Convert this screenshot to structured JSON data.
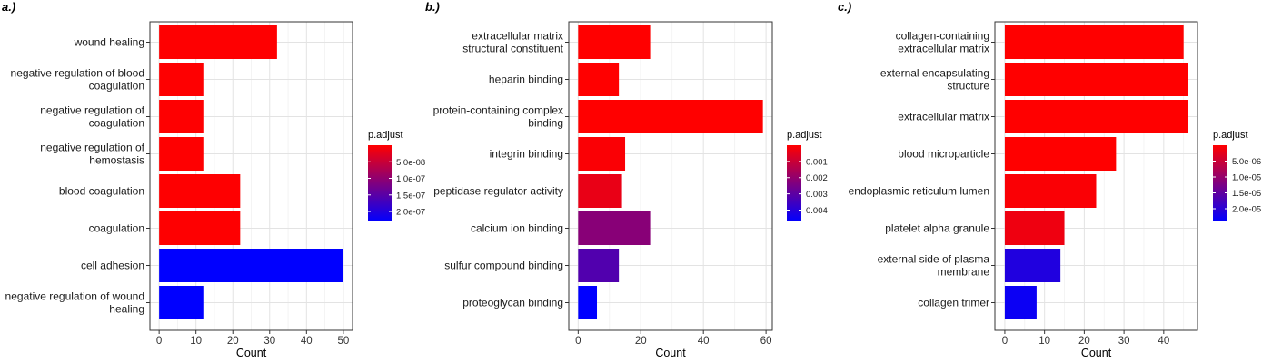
{
  "chart_data": [
    {
      "type": "bar",
      "orientation": "horizontal",
      "panel_label": "a.)",
      "categories": [
        "wound healing",
        "negative regulation of blood\ncoagulation",
        "negative regulation of\ncoagulation",
        "negative regulation of\nhemostasis",
        "blood coagulation",
        "coagulation",
        "cell adhesion",
        "negative regulation of wound\nhealing"
      ],
      "values": [
        32,
        12,
        12,
        12,
        22,
        22,
        50,
        12
      ],
      "p_adjust": [
        5e-10,
        1e-09,
        1e-09,
        1e-09,
        1e-09,
        1e-09,
        2.3e-07,
        2.3e-07
      ],
      "xlabel": "Count",
      "xlim": [
        -2.5,
        52.5
      ],
      "xticks": [
        0,
        10,
        20,
        30,
        40,
        50
      ],
      "grid": true,
      "legend": {
        "title": "p.adjust",
        "placement": "right",
        "min": 0,
        "max": 2.3e-07,
        "ticks": [
          5e-08,
          1e-07,
          1.5e-07,
          2e-07
        ],
        "tick_labels": [
          "5.0e-08",
          "1.0e-07",
          "1.5e-07",
          "2.0e-07"
        ]
      }
    },
    {
      "type": "bar",
      "orientation": "horizontal",
      "panel_label": "b.)",
      "categories": [
        "extracellular matrix\nstructural constituent",
        "heparin binding",
        "protein-containing complex\nbinding",
        "integrin binding",
        "peptidase regulator activity",
        "calcium ion binding",
        "sulfur compound binding",
        "proteoglycan binding"
      ],
      "values": [
        23,
        13,
        59,
        15,
        14,
        23,
        13,
        6
      ],
      "p_adjust": [
        5e-06,
        5e-06,
        5e-06,
        0.0001,
        0.0004,
        0.0022,
        0.0032,
        0.0047
      ],
      "xlabel": "Count",
      "xlim": [
        -3,
        62
      ],
      "xticks": [
        0,
        20,
        40,
        60
      ],
      "grid": true,
      "legend": {
        "title": "p.adjust",
        "placement": "right",
        "min": 0,
        "max": 0.0047,
        "ticks": [
          0.001,
          0.002,
          0.003,
          0.004
        ],
        "tick_labels": [
          "0.001",
          "0.002",
          "0.003",
          "0.004"
        ]
      }
    },
    {
      "type": "bar",
      "orientation": "horizontal",
      "panel_label": "c.)",
      "categories": [
        "collagen-containing\nextracellular matrix",
        "external encapsulating\nstructure",
        "extracellular matrix",
        "blood microparticle",
        "endoplasmic reticulum lumen",
        "platelet alpha granule",
        "external side of plasma\nmembrane",
        "collagen trimer"
      ],
      "values": [
        45,
        46,
        46,
        28,
        23,
        15,
        14,
        8
      ],
      "p_adjust": [
        1e-08,
        1e-08,
        1e-08,
        2e-08,
        5e-07,
        1.5e-06,
        2.1e-05,
        2.3e-05
      ],
      "xlabel": "Count",
      "xlim": [
        -2.5,
        48.5
      ],
      "xticks": [
        0,
        10,
        20,
        30,
        40
      ],
      "grid": true,
      "legend": {
        "title": "p.adjust",
        "placement": "right",
        "min": 0,
        "max": 2.4e-05,
        "ticks": [
          5e-06,
          1e-05,
          1.5e-05,
          2e-05
        ],
        "tick_labels": [
          "5.0e-06",
          "1.0e-05",
          "1.5e-05",
          "2.0e-05"
        ]
      }
    }
  ]
}
